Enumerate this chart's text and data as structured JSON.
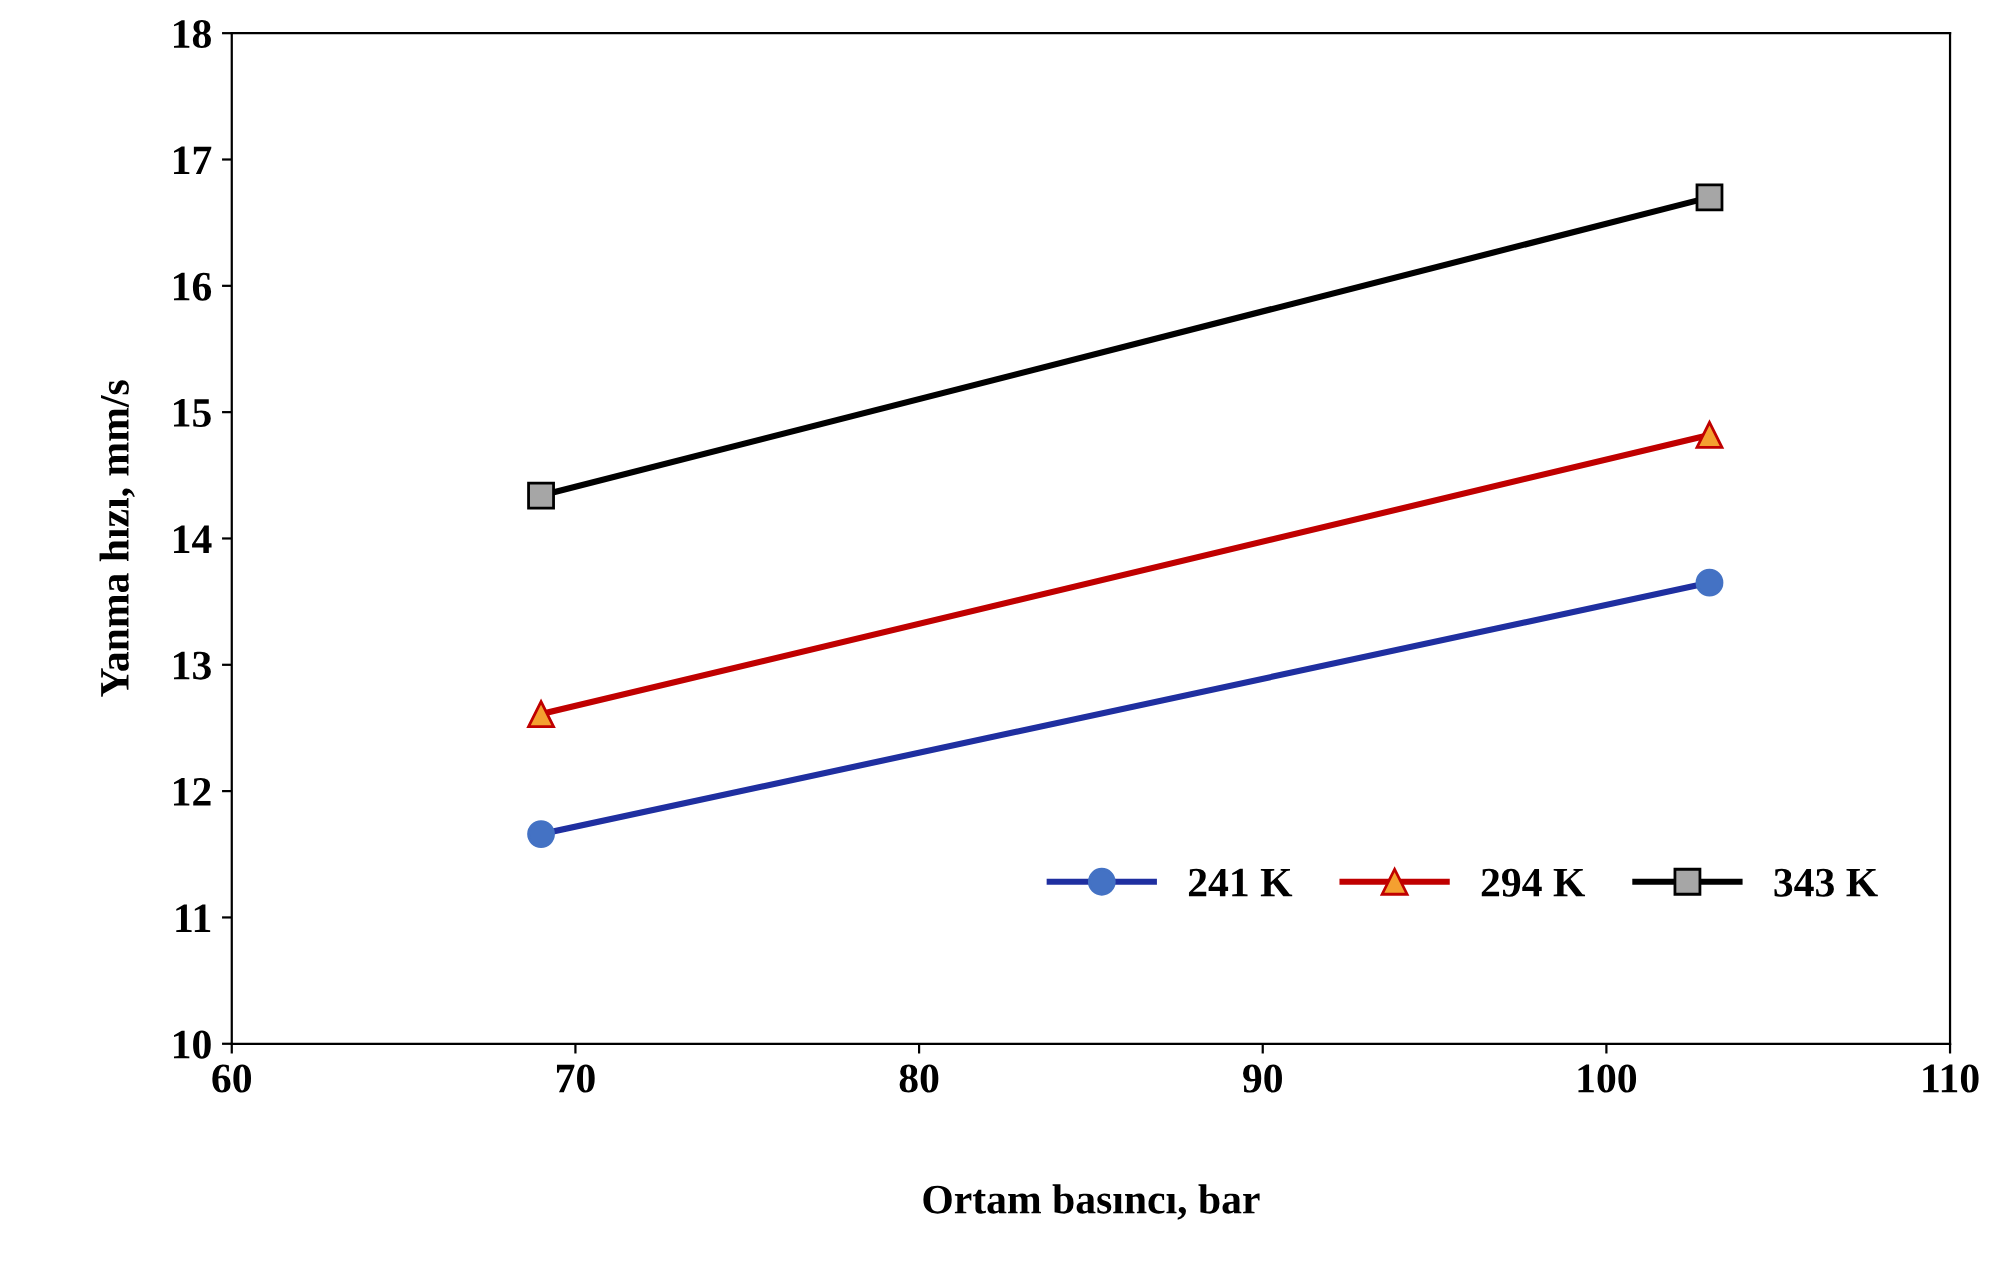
{
  "chart_data": {
    "type": "line",
    "xlabel": "Ortam basıncı, bar",
    "ylabel": "Yanma hızı, mm/s",
    "x": [
      69,
      103
    ],
    "series": [
      {
        "name": "241 K",
        "color": "#1f2fa0",
        "marker": "circle",
        "values": [
          11.66,
          13.65
        ]
      },
      {
        "name": "294 K",
        "color": "#c00000",
        "marker": "triangle",
        "values": [
          12.61,
          14.82
        ]
      },
      {
        "name": "343 K",
        "color": "#000000",
        "marker": "square",
        "values": [
          14.34,
          16.7
        ]
      }
    ],
    "xlim": [
      60,
      110
    ],
    "xticks": [
      60,
      70,
      80,
      90,
      100,
      110
    ],
    "ylim": [
      10,
      18
    ],
    "yticks": [
      10,
      11,
      12,
      13,
      14,
      15,
      16,
      17,
      18
    ],
    "grid": false,
    "legend": "bottom right",
    "line_style": "solid"
  }
}
